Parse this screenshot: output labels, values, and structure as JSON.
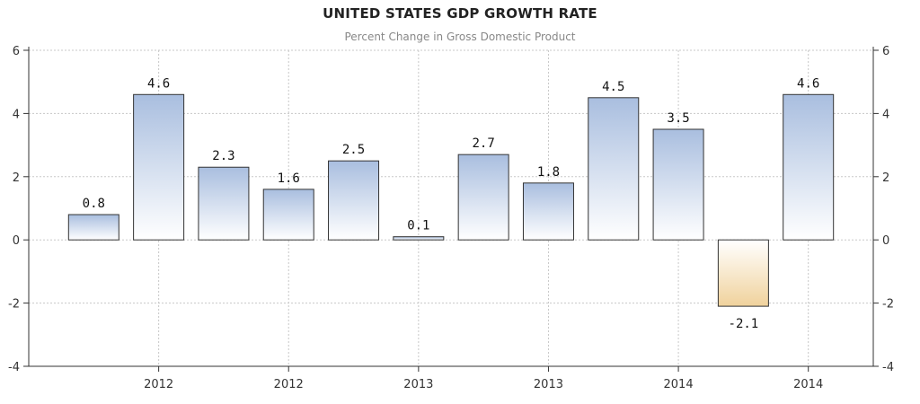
{
  "chart_data": {
    "type": "bar",
    "title": "UNITED STATES GDP GROWTH RATE",
    "subtitle": "Percent Change in Gross Domestic Product",
    "values": [
      0.8,
      4.6,
      2.3,
      1.6,
      2.5,
      0.1,
      2.7,
      1.8,
      4.5,
      3.5,
      -2.1,
      4.6
    ],
    "data_labels": [
      "0.8",
      "4.6",
      "2.3",
      "1.6",
      "2.5",
      "0.1",
      "2.7",
      "1.8",
      "4.5",
      "3.5",
      "-2.1",
      "4.6"
    ],
    "x_tick_labels": [
      "2012",
      "2012",
      "2013",
      "2013",
      "2014",
      "2014"
    ],
    "y_ticks": [
      -4,
      -2,
      0,
      2,
      4,
      6
    ],
    "y_tick_labels": [
      "-4",
      "-2",
      "0",
      "2",
      "4",
      "6"
    ],
    "ylim": [
      -4,
      6
    ],
    "grid": true,
    "axes": "left-and-right",
    "colors": {
      "positive_top": "#a9bedf",
      "positive_bottom": "#ffffff",
      "negative_top": "#ffffff",
      "negative_bottom": "#f0d29c",
      "bar_stroke": "#333333",
      "grid": "#c8c8c8"
    }
  }
}
